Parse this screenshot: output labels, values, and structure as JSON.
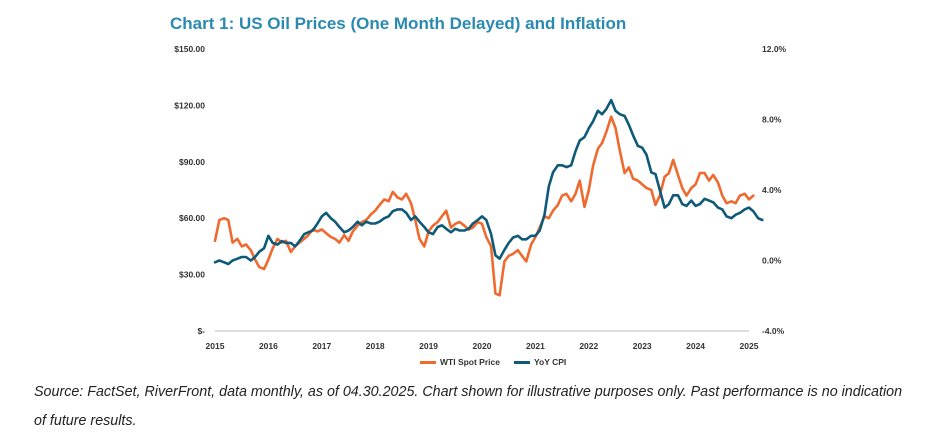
{
  "title": "Chart 1: US Oil Prices (One Month Delayed) and Inflation",
  "source": "Source: FactSet, RiverFront, data monthly, as of 04.30.2025. Chart shown for illustrative purposes only. Past performance is no indication of future results.",
  "colors": {
    "title": "#2a8ab0",
    "wti": "#ef6a2e",
    "cpi": "#0f5a78"
  },
  "chart_data": {
    "type": "line",
    "title": "Chart 1: US Oil Prices (One Month Delayed) and Inflation",
    "x_tick_labels": [
      "2015",
      "2016",
      "2017",
      "2018",
      "2019",
      "2020",
      "2021",
      "2022",
      "2023",
      "2024",
      "2025"
    ],
    "x_range": [
      2015,
      2025
    ],
    "y_left": {
      "range": [
        0,
        150
      ],
      "tick_values": [
        0,
        30,
        60,
        90,
        120,
        150
      ],
      "tick_labels": [
        "$-",
        "$30.00",
        "$60.00",
        "$90.00",
        "$120.00",
        "$150.00"
      ]
    },
    "y_right": {
      "range": [
        -4,
        12
      ],
      "tick_values": [
        -4,
        0,
        4,
        8,
        12
      ],
      "tick_labels": [
        "-4.0%",
        "0.0%",
        "4.0%",
        "8.0%",
        "12.0%"
      ]
    },
    "legend": [
      "WTI Spot Price",
      "YoY CPI"
    ],
    "series": [
      {
        "name": "WTI Spot Price",
        "axis": "left",
        "points": [
          [
            2015.0,
            48
          ],
          [
            2015.08,
            59
          ],
          [
            2015.17,
            60
          ],
          [
            2015.25,
            59
          ],
          [
            2015.33,
            47
          ],
          [
            2015.42,
            49
          ],
          [
            2015.5,
            45
          ],
          [
            2015.58,
            46
          ],
          [
            2015.67,
            43
          ],
          [
            2015.75,
            38
          ],
          [
            2015.83,
            34
          ],
          [
            2015.92,
            33
          ],
          [
            2016.0,
            38
          ],
          [
            2016.08,
            44
          ],
          [
            2016.17,
            49
          ],
          [
            2016.25,
            47
          ],
          [
            2016.33,
            48
          ],
          [
            2016.42,
            42
          ],
          [
            2016.5,
            45
          ],
          [
            2016.58,
            47
          ],
          [
            2016.67,
            49
          ],
          [
            2016.75,
            51
          ],
          [
            2016.83,
            54
          ],
          [
            2016.92,
            53
          ],
          [
            2017.0,
            54
          ],
          [
            2017.08,
            52
          ],
          [
            2017.17,
            50
          ],
          [
            2017.25,
            49
          ],
          [
            2017.33,
            47
          ],
          [
            2017.42,
            51
          ],
          [
            2017.5,
            48
          ],
          [
            2017.58,
            53
          ],
          [
            2017.67,
            56
          ],
          [
            2017.75,
            58
          ],
          [
            2017.83,
            59
          ],
          [
            2017.92,
            62
          ],
          [
            2018.0,
            64
          ],
          [
            2018.08,
            67
          ],
          [
            2018.17,
            70
          ],
          [
            2018.25,
            69
          ],
          [
            2018.33,
            74
          ],
          [
            2018.42,
            71
          ],
          [
            2018.5,
            70
          ],
          [
            2018.58,
            73
          ],
          [
            2018.67,
            68
          ],
          [
            2018.75,
            59
          ],
          [
            2018.83,
            49
          ],
          [
            2018.92,
            45
          ],
          [
            2019.0,
            53
          ],
          [
            2019.08,
            56
          ],
          [
            2019.17,
            58
          ],
          [
            2019.25,
            61
          ],
          [
            2019.33,
            64
          ],
          [
            2019.42,
            55
          ],
          [
            2019.5,
            57
          ],
          [
            2019.58,
            58
          ],
          [
            2019.67,
            56
          ],
          [
            2019.75,
            54
          ],
          [
            2019.83,
            55
          ],
          [
            2019.92,
            58
          ],
          [
            2020.0,
            57
          ],
          [
            2020.08,
            50
          ],
          [
            2020.17,
            45
          ],
          [
            2020.25,
            20
          ],
          [
            2020.33,
            19
          ],
          [
            2020.42,
            37
          ],
          [
            2020.5,
            40
          ],
          [
            2020.58,
            41
          ],
          [
            2020.67,
            43
          ],
          [
            2020.75,
            40
          ],
          [
            2020.83,
            37
          ],
          [
            2020.92,
            46
          ],
          [
            2021.0,
            50
          ],
          [
            2021.08,
            55
          ],
          [
            2021.17,
            61
          ],
          [
            2021.25,
            60
          ],
          [
            2021.33,
            64
          ],
          [
            2021.42,
            67
          ],
          [
            2021.5,
            72
          ],
          [
            2021.58,
            73
          ],
          [
            2021.67,
            69
          ],
          [
            2021.75,
            73
          ],
          [
            2021.83,
            80
          ],
          [
            2021.92,
            66
          ],
          [
            2022.0,
            75
          ],
          [
            2022.08,
            88
          ],
          [
            2022.17,
            97
          ],
          [
            2022.25,
            100
          ],
          [
            2022.33,
            106
          ],
          [
            2022.42,
            114
          ],
          [
            2022.5,
            108
          ],
          [
            2022.58,
            96
          ],
          [
            2022.67,
            84
          ],
          [
            2022.75,
            87
          ],
          [
            2022.83,
            81
          ],
          [
            2022.92,
            80
          ],
          [
            2023.0,
            78
          ],
          [
            2023.08,
            76
          ],
          [
            2023.17,
            75
          ],
          [
            2023.25,
            67
          ],
          [
            2023.33,
            72
          ],
          [
            2023.42,
            82
          ],
          [
            2023.5,
            84
          ],
          [
            2023.58,
            91
          ],
          [
            2023.67,
            83
          ],
          [
            2023.75,
            76
          ],
          [
            2023.83,
            72
          ],
          [
            2023.92,
            76
          ],
          [
            2024.0,
            78
          ],
          [
            2024.08,
            84
          ],
          [
            2024.17,
            84
          ],
          [
            2024.25,
            80
          ],
          [
            2024.33,
            83
          ],
          [
            2024.42,
            79
          ],
          [
            2024.5,
            72
          ],
          [
            2024.58,
            68
          ],
          [
            2024.67,
            69
          ],
          [
            2024.75,
            68
          ],
          [
            2024.83,
            72
          ],
          [
            2024.92,
            73
          ],
          [
            2025.0,
            70
          ],
          [
            2025.08,
            72
          ]
        ]
      },
      {
        "name": "YoY CPI",
        "axis": "right",
        "points": [
          [
            2015.0,
            -0.1
          ],
          [
            2015.08,
            0.0
          ],
          [
            2015.17,
            -0.1
          ],
          [
            2015.25,
            -0.2
          ],
          [
            2015.33,
            0.0
          ],
          [
            2015.42,
            0.1
          ],
          [
            2015.5,
            0.2
          ],
          [
            2015.58,
            0.2
          ],
          [
            2015.67,
            0.0
          ],
          [
            2015.75,
            0.2
          ],
          [
            2015.83,
            0.5
          ],
          [
            2015.92,
            0.7
          ],
          [
            2016.0,
            1.4
          ],
          [
            2016.08,
            1.0
          ],
          [
            2016.17,
            0.9
          ],
          [
            2016.25,
            1.1
          ],
          [
            2016.33,
            1.0
          ],
          [
            2016.42,
            1.0
          ],
          [
            2016.5,
            0.8
          ],
          [
            2016.58,
            1.1
          ],
          [
            2016.67,
            1.5
          ],
          [
            2016.75,
            1.6
          ],
          [
            2016.83,
            1.7
          ],
          [
            2016.92,
            2.1
          ],
          [
            2017.0,
            2.5
          ],
          [
            2017.08,
            2.7
          ],
          [
            2017.17,
            2.4
          ],
          [
            2017.25,
            2.2
          ],
          [
            2017.33,
            1.9
          ],
          [
            2017.42,
            1.6
          ],
          [
            2017.5,
            1.7
          ],
          [
            2017.58,
            1.9
          ],
          [
            2017.67,
            2.2
          ],
          [
            2017.75,
            2.0
          ],
          [
            2017.83,
            2.2
          ],
          [
            2017.92,
            2.1
          ],
          [
            2018.0,
            2.1
          ],
          [
            2018.08,
            2.2
          ],
          [
            2018.17,
            2.4
          ],
          [
            2018.25,
            2.5
          ],
          [
            2018.33,
            2.8
          ],
          [
            2018.42,
            2.9
          ],
          [
            2018.5,
            2.9
          ],
          [
            2018.58,
            2.7
          ],
          [
            2018.67,
            2.3
          ],
          [
            2018.75,
            2.5
          ],
          [
            2018.83,
            2.2
          ],
          [
            2018.92,
            1.9
          ],
          [
            2019.0,
            1.6
          ],
          [
            2019.08,
            1.5
          ],
          [
            2019.17,
            1.9
          ],
          [
            2019.25,
            2.0
          ],
          [
            2019.33,
            1.8
          ],
          [
            2019.42,
            1.6
          ],
          [
            2019.5,
            1.8
          ],
          [
            2019.58,
            1.7
          ],
          [
            2019.67,
            1.7
          ],
          [
            2019.75,
            1.8
          ],
          [
            2019.83,
            2.1
          ],
          [
            2019.92,
            2.3
          ],
          [
            2020.0,
            2.5
          ],
          [
            2020.08,
            2.3
          ],
          [
            2020.17,
            1.5
          ],
          [
            2020.25,
            0.3
          ],
          [
            2020.33,
            0.1
          ],
          [
            2020.42,
            0.6
          ],
          [
            2020.5,
            1.0
          ],
          [
            2020.58,
            1.3
          ],
          [
            2020.67,
            1.4
          ],
          [
            2020.75,
            1.2
          ],
          [
            2020.83,
            1.2
          ],
          [
            2020.92,
            1.4
          ],
          [
            2021.0,
            1.4
          ],
          [
            2021.08,
            1.7
          ],
          [
            2021.17,
            2.6
          ],
          [
            2021.25,
            4.2
          ],
          [
            2021.33,
            5.0
          ],
          [
            2021.42,
            5.4
          ],
          [
            2021.5,
            5.4
          ],
          [
            2021.58,
            5.3
          ],
          [
            2021.67,
            5.4
          ],
          [
            2021.75,
            6.2
          ],
          [
            2021.83,
            6.8
          ],
          [
            2021.92,
            7.0
          ],
          [
            2022.0,
            7.5
          ],
          [
            2022.08,
            7.9
          ],
          [
            2022.17,
            8.5
          ],
          [
            2022.25,
            8.3
          ],
          [
            2022.33,
            8.6
          ],
          [
            2022.42,
            9.1
          ],
          [
            2022.5,
            8.5
          ],
          [
            2022.58,
            8.3
          ],
          [
            2022.67,
            8.2
          ],
          [
            2022.75,
            7.7
          ],
          [
            2022.83,
            7.1
          ],
          [
            2022.92,
            6.5
          ],
          [
            2023.0,
            6.4
          ],
          [
            2023.08,
            6.0
          ],
          [
            2023.17,
            5.0
          ],
          [
            2023.25,
            4.9
          ],
          [
            2023.33,
            4.0
          ],
          [
            2023.42,
            3.0
          ],
          [
            2023.5,
            3.2
          ],
          [
            2023.58,
            3.7
          ],
          [
            2023.67,
            3.7
          ],
          [
            2023.75,
            3.2
          ],
          [
            2023.83,
            3.1
          ],
          [
            2023.92,
            3.4
          ],
          [
            2024.0,
            3.1
          ],
          [
            2024.08,
            3.2
          ],
          [
            2024.17,
            3.5
          ],
          [
            2024.25,
            3.4
          ],
          [
            2024.33,
            3.3
          ],
          [
            2024.42,
            3.0
          ],
          [
            2024.5,
            2.9
          ],
          [
            2024.58,
            2.5
          ],
          [
            2024.67,
            2.4
          ],
          [
            2024.75,
            2.6
          ],
          [
            2024.83,
            2.7
          ],
          [
            2024.92,
            2.9
          ],
          [
            2025.0,
            3.0
          ],
          [
            2025.08,
            2.8
          ],
          [
            2025.17,
            2.4
          ],
          [
            2025.25,
            2.3
          ]
        ]
      }
    ]
  }
}
